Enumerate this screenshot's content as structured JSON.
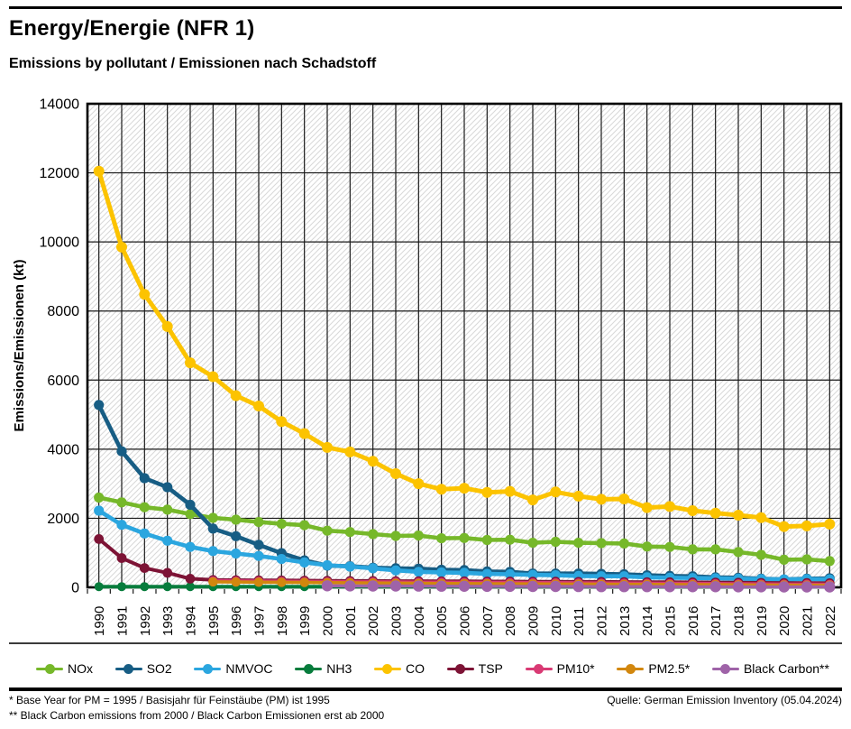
{
  "page": {
    "title": "Energy/Energie (NFR 1)",
    "subtitle": "Emissions by pollutant / Emissionen nach Schadstoff"
  },
  "footnotes": {
    "line1": "* Base Year for PM = 1995 / Basisjahr für Feinstäube (PM) ist 1995",
    "line2": "** Black Carbon emissions from 2000 / Black Carbon Emissionen erst ab 2000",
    "source": "Quelle: German Emission Inventory (05.04.2024)"
  },
  "chart_data": {
    "type": "line",
    "title": "Energy/Energie (NFR 1)",
    "subtitle": "Emissions by pollutant / Emissionen nach Schadstoff",
    "xlabel": "",
    "ylabel": "Emissions/Emissionen (kt)",
    "ylim": [
      0,
      14000
    ],
    "ytick_step": 2000,
    "grid": true,
    "background_hatch": true,
    "legend_position": "bottom",
    "x": [
      1990,
      1991,
      1992,
      1993,
      1994,
      1995,
      1996,
      1997,
      1998,
      1999,
      2000,
      2001,
      2002,
      2003,
      2004,
      2005,
      2006,
      2007,
      2008,
      2009,
      2010,
      2011,
      2012,
      2013,
      2014,
      2015,
      2016,
      2017,
      2018,
      2019,
      2020,
      2021,
      2022
    ],
    "series": [
      {
        "name": "NOx",
        "color": "#76b82a",
        "values": [
          2600,
          2460,
          2320,
          2250,
          2120,
          2010,
          1960,
          1890,
          1840,
          1800,
          1640,
          1600,
          1540,
          1490,
          1500,
          1420,
          1430,
          1370,
          1380,
          1290,
          1320,
          1290,
          1280,
          1270,
          1180,
          1170,
          1100,
          1100,
          1020,
          940,
          800,
          810,
          760
        ]
      },
      {
        "name": "SO2",
        "color": "#175d84",
        "values": [
          5280,
          3940,
          3160,
          2900,
          2390,
          1700,
          1480,
          1230,
          990,
          780,
          630,
          610,
          570,
          550,
          540,
          510,
          500,
          460,
          450,
          400,
          400,
          400,
          390,
          380,
          350,
          330,
          320,
          290,
          280,
          250,
          230,
          250,
          260
        ]
      },
      {
        "name": "NMVOC",
        "color": "#2ba6df",
        "values": [
          2220,
          1810,
          1560,
          1350,
          1170,
          1050,
          980,
          910,
          820,
          720,
          640,
          600,
          550,
          490,
          450,
          430,
          420,
          390,
          380,
          360,
          350,
          330,
          320,
          320,
          290,
          280,
          270,
          260,
          250,
          240,
          230,
          240,
          230
        ]
      },
      {
        "name": "NH3",
        "color": "#077c3c",
        "values": [
          20,
          20,
          20,
          20,
          20,
          20,
          20,
          20,
          20,
          20,
          20,
          20,
          20,
          20,
          20,
          20,
          20,
          20,
          20,
          20,
          20,
          20,
          20,
          20,
          20,
          20,
          20,
          20,
          20,
          20,
          20,
          20,
          20
        ]
      },
      {
        "name": "CO",
        "color": "#fcc300",
        "values": [
          12050,
          9850,
          8480,
          7550,
          6500,
          6100,
          5550,
          5250,
          4800,
          4450,
          4050,
          3920,
          3650,
          3290,
          3000,
          2840,
          2870,
          2750,
          2780,
          2530,
          2760,
          2640,
          2550,
          2560,
          2310,
          2340,
          2220,
          2150,
          2090,
          2020,
          1760,
          1780,
          1830
        ]
      },
      {
        "name": "TSP",
        "color": "#7d1335",
        "values": [
          1400,
          850,
          560,
          420,
          250,
          215,
          210,
          205,
          200,
          195,
          190,
          185,
          185,
          180,
          180,
          175,
          175,
          170,
          170,
          165,
          165,
          160,
          160,
          155,
          150,
          150,
          145,
          140,
          135,
          130,
          125,
          125,
          120
        ]
      },
      {
        "name": "PM10*",
        "color": "#d93a74",
        "values": [
          null,
          null,
          null,
          null,
          null,
          190,
          185,
          180,
          175,
          170,
          165,
          160,
          160,
          155,
          150,
          150,
          145,
          140,
          140,
          135,
          135,
          130,
          125,
          125,
          120,
          115,
          115,
          110,
          105,
          100,
          95,
          95,
          90
        ]
      },
      {
        "name": "PM2.5*",
        "color": "#d2870e",
        "values": [
          null,
          null,
          null,
          null,
          null,
          160,
          155,
          150,
          145,
          140,
          135,
          130,
          125,
          120,
          115,
          110,
          110,
          105,
          100,
          100,
          95,
          95,
          90,
          85,
          85,
          80,
          75,
          75,
          70,
          65,
          65,
          60,
          60
        ]
      },
      {
        "name": "Black Carbon**",
        "color": "#9f63a8",
        "values": [
          null,
          null,
          null,
          null,
          null,
          null,
          null,
          null,
          null,
          null,
          45,
          43,
          40,
          38,
          36,
          34,
          32,
          30,
          28,
          26,
          25,
          24,
          22,
          21,
          20,
          19,
          18,
          17,
          16,
          15,
          14,
          13,
          12
        ]
      }
    ]
  }
}
